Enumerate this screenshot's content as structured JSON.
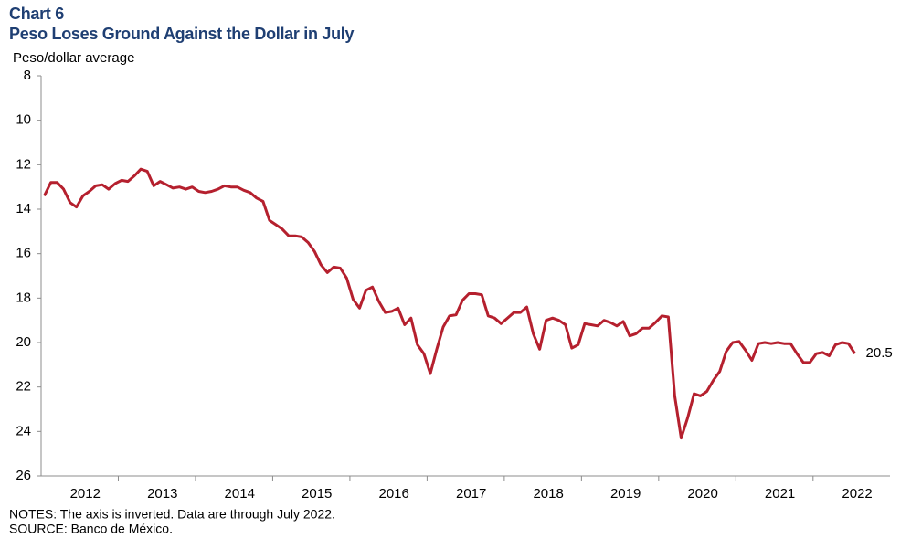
{
  "chart_data": {
    "type": "line",
    "title": "Chart 6",
    "subtitle": "Peso Loses Ground Against the Dollar in July",
    "y_label": "Peso/dollar average",
    "notes": "NOTES: The axis is inverted. Data are through July 2022.",
    "source": "SOURCE: Banco de México.",
    "color": "#b5202e",
    "y_inverted": true,
    "ylim": [
      8,
      26
    ],
    "yticks": [
      8,
      10,
      12,
      14,
      16,
      18,
      20,
      22,
      24,
      26
    ],
    "categories": [
      null,
      null,
      null,
      null,
      null,
      null,
      "2012",
      null,
      null,
      null,
      null,
      null,
      null,
      null,
      null,
      null,
      null,
      null,
      "2013",
      null,
      null,
      null,
      null,
      null,
      null,
      null,
      null,
      null,
      null,
      null,
      "2014",
      null,
      null,
      null,
      null,
      null,
      null,
      null,
      null,
      null,
      null,
      null,
      "2015",
      null,
      null,
      null,
      null,
      null,
      null,
      null,
      null,
      null,
      null,
      null,
      "2016",
      null,
      null,
      null,
      null,
      null,
      null,
      null,
      null,
      null,
      null,
      null,
      "2017",
      null,
      null,
      null,
      null,
      null,
      null,
      null,
      null,
      null,
      null,
      null,
      "2018",
      null,
      null,
      null,
      null,
      null,
      null,
      null,
      null,
      null,
      null,
      null,
      "2019",
      null,
      null,
      null,
      null,
      null,
      null,
      null,
      null,
      null,
      null,
      null,
      "2020",
      null,
      null,
      null,
      null,
      null,
      null,
      null,
      null,
      null,
      null,
      null,
      "2021",
      null,
      null,
      null,
      null,
      null,
      null,
      null,
      null,
      null,
      null,
      null,
      "2022"
    ],
    "values": [
      13.4,
      12.8,
      12.8,
      13.1,
      13.7,
      13.9,
      13.4,
      13.2,
      12.95,
      12.9,
      13.1,
      12.85,
      12.7,
      12.75,
      12.5,
      12.2,
      12.3,
      12.95,
      12.75,
      12.9,
      13.05,
      13.0,
      13.1,
      13.0,
      13.2,
      13.25,
      13.2,
      13.1,
      12.95,
      13.0,
      13.0,
      13.15,
      13.25,
      13.5,
      13.65,
      14.5,
      14.7,
      14.9,
      15.2,
      15.2,
      15.25,
      15.5,
      15.9,
      16.5,
      16.85,
      16.6,
      16.65,
      17.1,
      18.05,
      18.45,
      17.65,
      17.5,
      18.15,
      18.65,
      18.6,
      18.45,
      19.2,
      18.9,
      20.1,
      20.5,
      21.4,
      20.3,
      19.3,
      18.8,
      18.75,
      18.1,
      17.8,
      17.8,
      17.85,
      18.8,
      18.9,
      19.15,
      18.9,
      18.65,
      18.65,
      18.4,
      19.6,
      20.3,
      19.0,
      18.9,
      19.0,
      19.2,
      20.25,
      20.1,
      19.15,
      19.2,
      19.25,
      19.0,
      19.1,
      19.25,
      19.05,
      19.7,
      19.6,
      19.35,
      19.35,
      19.1,
      18.8,
      18.85,
      22.4,
      24.3,
      23.4,
      22.3,
      22.4,
      22.2,
      21.7,
      21.3,
      20.4,
      20.0,
      19.95,
      20.35,
      20.8,
      20.05,
      20.0,
      20.05,
      20.0,
      20.05,
      20.05,
      20.5,
      20.9,
      20.9,
      20.5,
      20.45,
      20.6,
      20.1,
      20.0,
      20.05,
      20.5
    ]
  }
}
